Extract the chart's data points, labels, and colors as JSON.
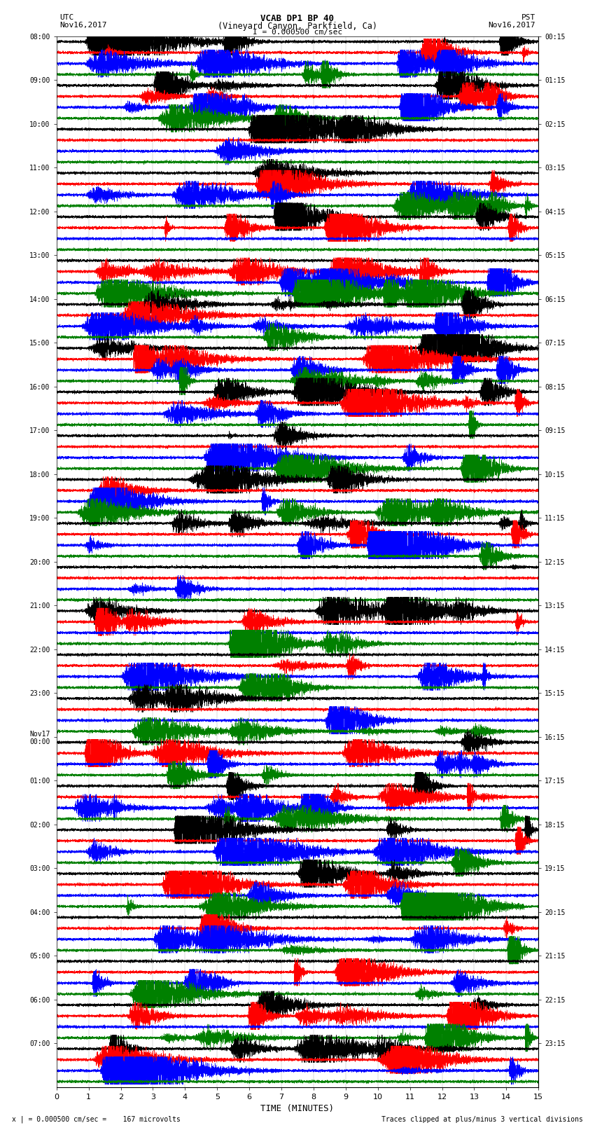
{
  "title_line1": "VCAB DP1 BP 40",
  "title_line2": "(Vineyard Canyon, Parkfield, Ca)",
  "scale_label": "I = 0.000500 cm/sec",
  "utc_label": "UTC",
  "pst_label": "PST",
  "date_left": "Nov16,2017",
  "date_right": "Nov16,2017",
  "xlabel": "TIME (MINUTES)",
  "footer_left": "x | = 0.000500 cm/sec =    167 microvolts",
  "footer_right": "Traces clipped at plus/minus 3 vertical divisions",
  "xlim": [
    0,
    15
  ],
  "xticks": [
    0,
    1,
    2,
    3,
    4,
    5,
    6,
    7,
    8,
    9,
    10,
    11,
    12,
    13,
    14,
    15
  ],
  "trace_colors_cycle": [
    "black",
    "red",
    "blue",
    "green"
  ],
  "left_times": [
    "08:00",
    "",
    "",
    "",
    "09:00",
    "",
    "",
    "",
    "10:00",
    "",
    "",
    "",
    "11:00",
    "",
    "",
    "",
    "12:00",
    "",
    "",
    "",
    "13:00",
    "",
    "",
    "",
    "14:00",
    "",
    "",
    "",
    "15:00",
    "",
    "",
    "",
    "16:00",
    "",
    "",
    "",
    "17:00",
    "",
    "",
    "",
    "18:00",
    "",
    "",
    "",
    "19:00",
    "",
    "",
    "",
    "20:00",
    "",
    "",
    "",
    "21:00",
    "",
    "",
    "",
    "22:00",
    "",
    "",
    "",
    "23:00",
    "",
    "",
    "",
    "Nov17\n00:00",
    "",
    "",
    "",
    "01:00",
    "",
    "",
    "",
    "02:00",
    "",
    "",
    "",
    "03:00",
    "",
    "",
    "",
    "04:00",
    "",
    "",
    "",
    "05:00",
    "",
    "",
    "",
    "06:00",
    "",
    "",
    "",
    "07:00",
    "",
    "",
    ""
  ],
  "right_times": [
    "00:15",
    "",
    "",
    "",
    "01:15",
    "",
    "",
    "",
    "02:15",
    "",
    "",
    "",
    "03:15",
    "",
    "",
    "",
    "04:15",
    "",
    "",
    "",
    "05:15",
    "",
    "",
    "",
    "06:15",
    "",
    "",
    "",
    "07:15",
    "",
    "",
    "",
    "08:15",
    "",
    "",
    "",
    "09:15",
    "",
    "",
    "",
    "10:15",
    "",
    "",
    "",
    "11:15",
    "",
    "",
    "",
    "12:15",
    "",
    "",
    "",
    "13:15",
    "",
    "",
    "",
    "14:15",
    "",
    "",
    "",
    "15:15",
    "",
    "",
    "",
    "16:15",
    "",
    "",
    "",
    "17:15",
    "",
    "",
    "",
    "18:15",
    "",
    "",
    "",
    "19:15",
    "",
    "",
    "",
    "20:15",
    "",
    "",
    "",
    "21:15",
    "",
    "",
    "",
    "22:15",
    "",
    "",
    "",
    "23:15",
    "",
    "",
    ""
  ],
  "n_rows": 96,
  "background_color": "white",
  "n_points": 9000,
  "base_noise_amp": 0.12,
  "row_scale": 0.42
}
